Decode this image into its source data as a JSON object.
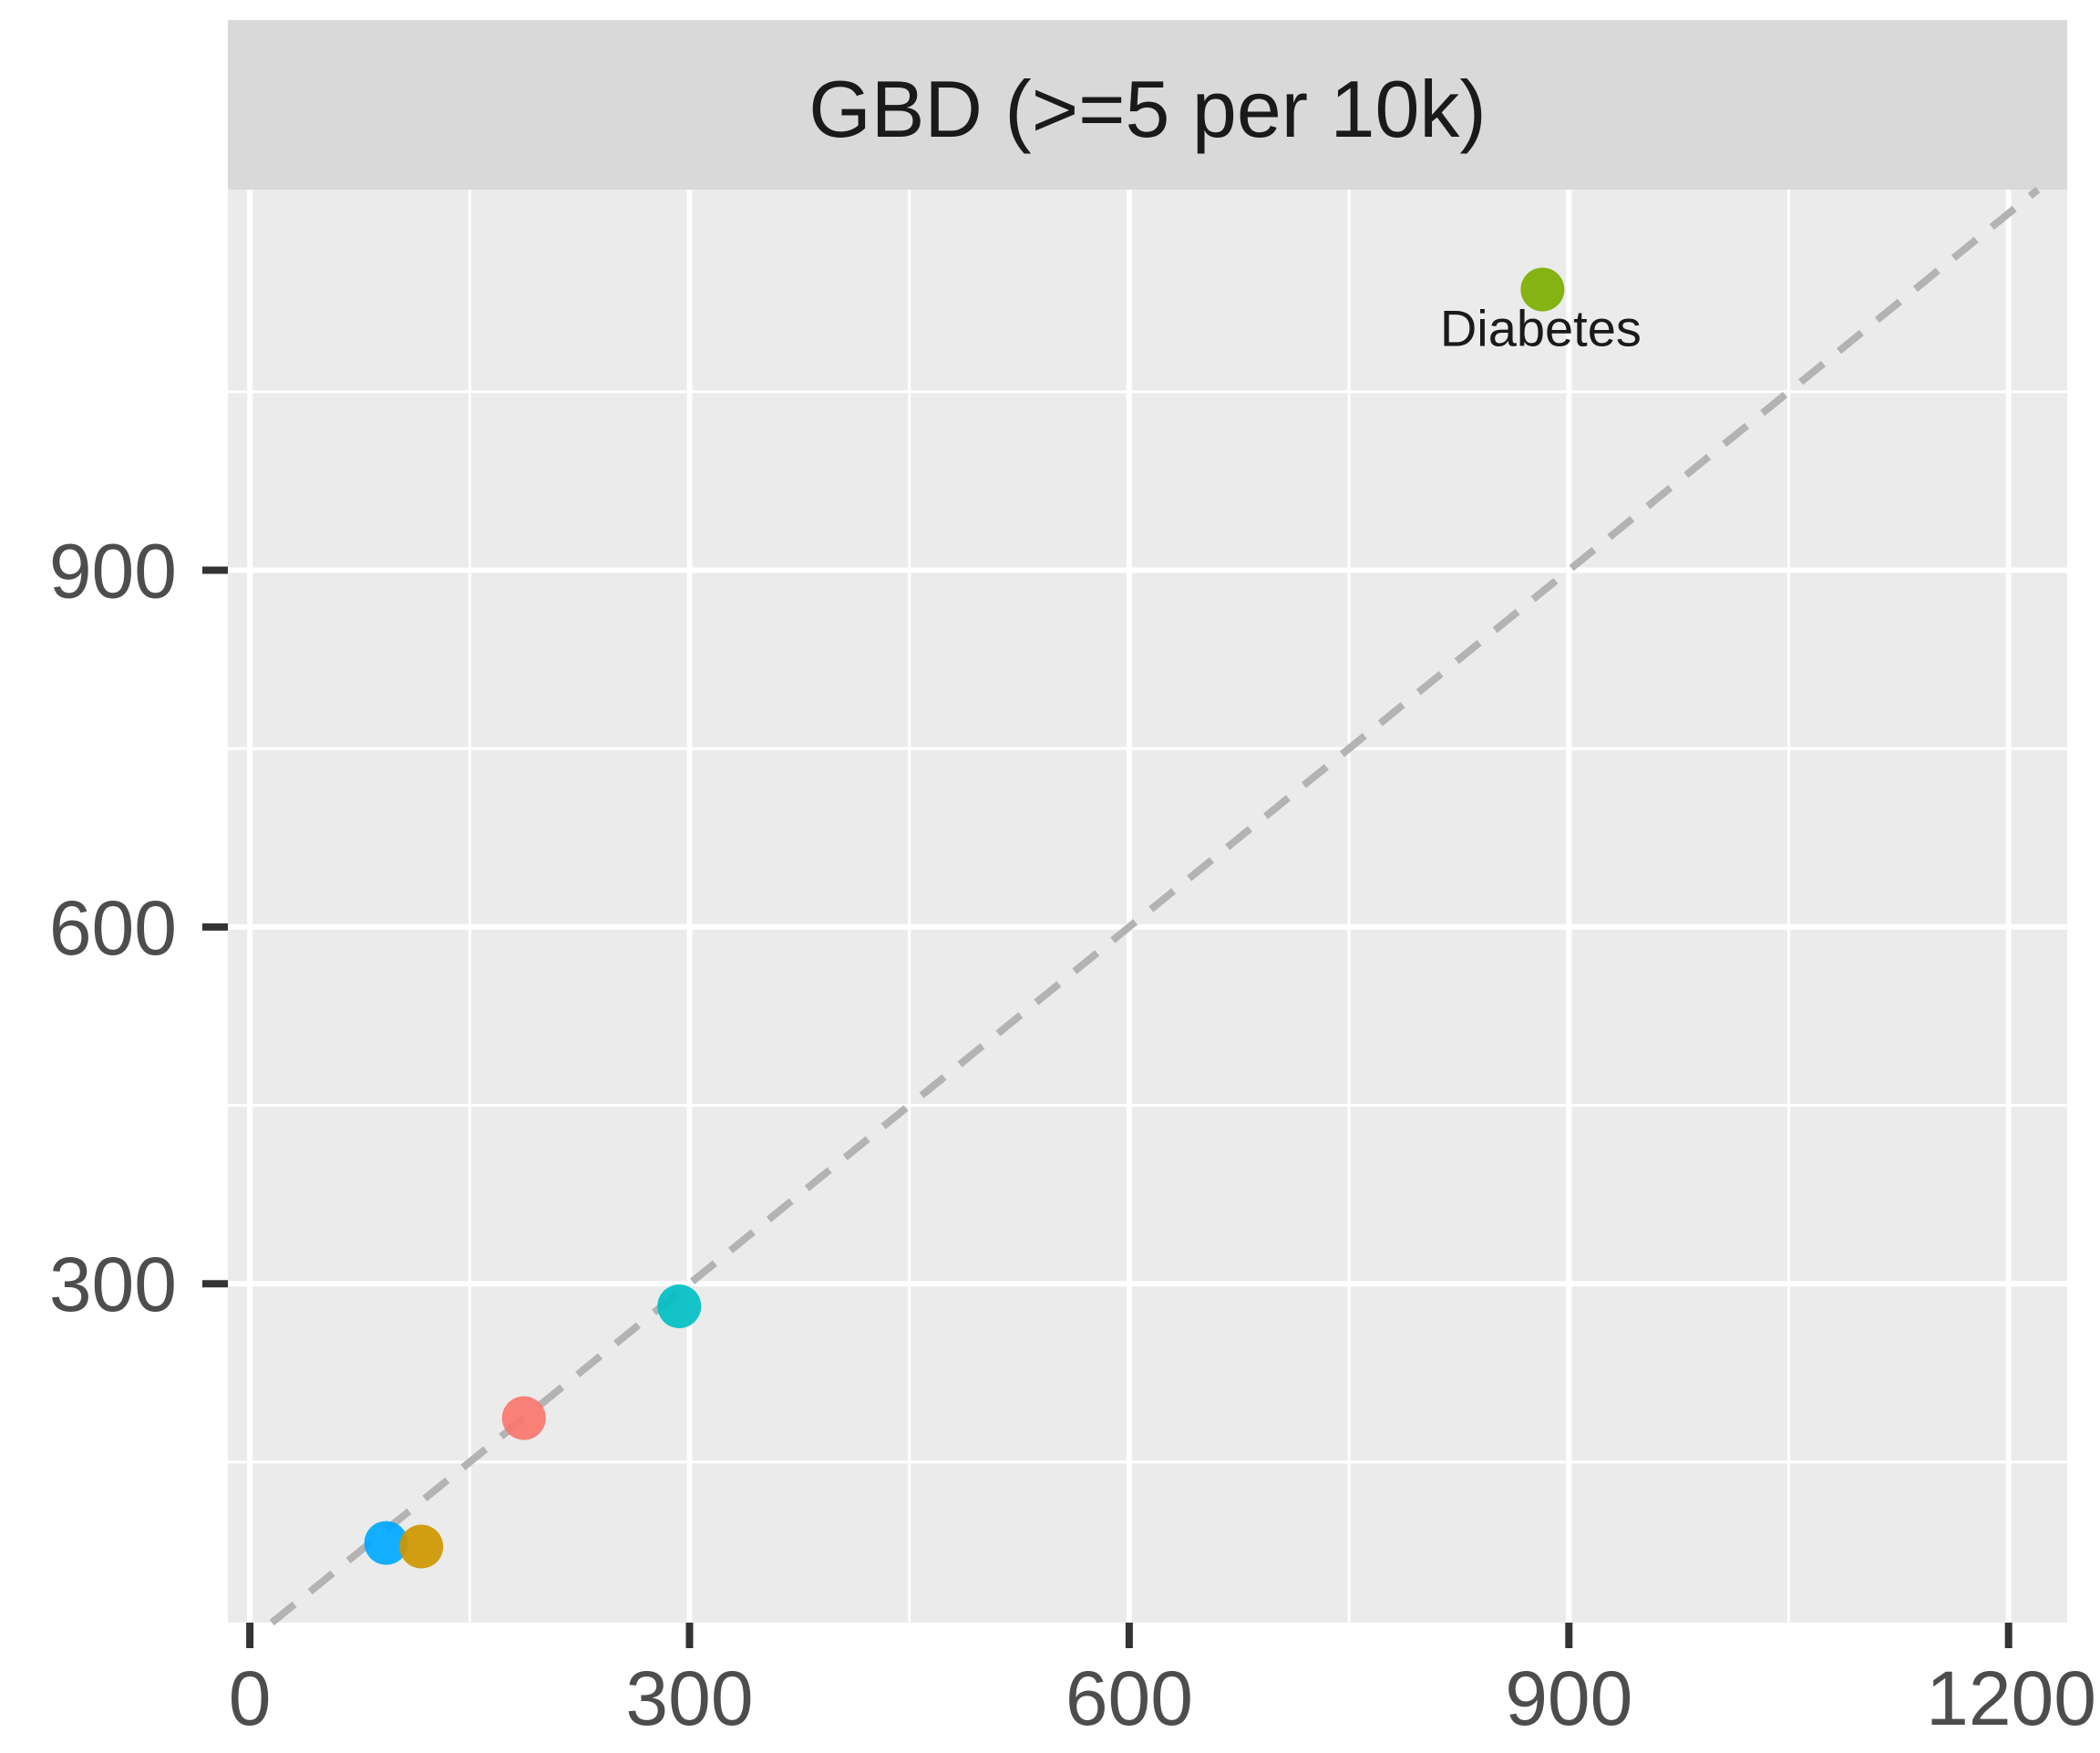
{
  "chart_data": {
    "type": "scatter",
    "title": "",
    "facet_label": "GBD (>=5 per 10k)",
    "xlabel": "",
    "ylabel": "",
    "xlim": [
      -15,
      1240
    ],
    "ylim": [
      15,
      1220
    ],
    "x_ticks": [
      0,
      300,
      600,
      900,
      1200
    ],
    "y_ticks": [
      300,
      600,
      900
    ],
    "grid": true,
    "reference_line": {
      "type": "identity",
      "style": "dashed",
      "color": "#b3b3b3"
    },
    "points": [
      {
        "x": 93,
        "y": 82,
        "color": "#00A9FF",
        "label": ""
      },
      {
        "x": 117,
        "y": 79,
        "color": "#CD9600",
        "label": ""
      },
      {
        "x": 187,
        "y": 187,
        "color": "#F8766D",
        "label": ""
      },
      {
        "x": 293,
        "y": 281,
        "color": "#00BFC4",
        "label": ""
      },
      {
        "x": 882,
        "y": 1136,
        "color": "#7CAE00",
        "label": "Diabetes"
      }
    ]
  }
}
